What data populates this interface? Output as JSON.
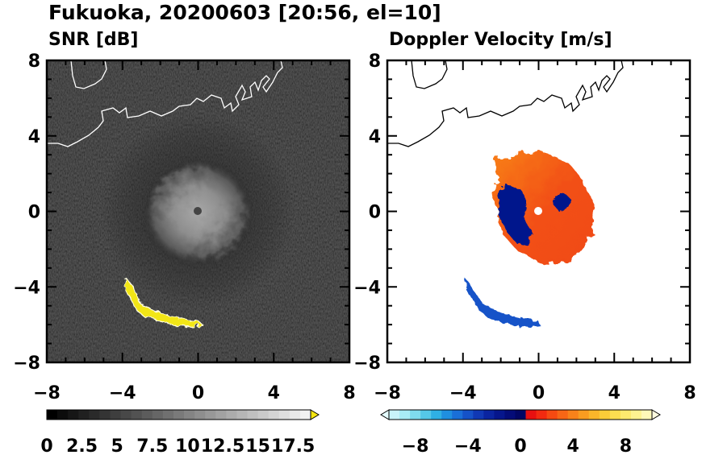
{
  "figure": {
    "title": "Fukuoka, 20200603 [20:56, el=10]"
  },
  "chart_data": [
    {
      "type": "heatmap",
      "title": "SNR [dB]",
      "xlim": [
        -8,
        8
      ],
      "ylim": [
        -8,
        8
      ],
      "xticks": [
        "-8",
        "-4",
        "0",
        "4",
        "8"
      ],
      "yticks": [
        "-8",
        "-4",
        "0",
        "4",
        "8"
      ],
      "background": "#101010",
      "coastline": true,
      "features": [
        {
          "name": "central echo",
          "center": [
            0,
            0
          ],
          "radius_km": 3.0,
          "snr_db": 7
        },
        {
          "name": "southwest band",
          "path": [
            [
              -3.9,
              -3.6
            ],
            [
              -3.7,
              -4.0
            ],
            [
              -3.3,
              -4.5
            ],
            [
              -3.2,
              -5.1
            ],
            [
              -2.5,
              -5.4
            ],
            [
              -1.8,
              -5.6
            ],
            [
              -1.1,
              -5.8
            ],
            [
              -0.4,
              -5.9
            ],
            [
              0.2,
              -6.0
            ]
          ],
          "snr_db": 18
        }
      ],
      "colorbar": {
        "min": 0,
        "max": 18.75,
        "extend": "max",
        "ticks": [
          "0",
          "2.5",
          "5",
          "7.5",
          "10",
          "12.5",
          "15",
          "17.5"
        ],
        "colors": [
          "#000000",
          "#0c0c0c",
          "#161616",
          "#202020",
          "#2a2a2a",
          "#343434",
          "#3e3e3e",
          "#484848",
          "#525252",
          "#5c5c5c",
          "#666666",
          "#707070",
          "#7a7a7a",
          "#848484",
          "#8e8e8e",
          "#989898",
          "#a2a2a2",
          "#acacac",
          "#b6b6b6",
          "#c0c0c0",
          "#cacaca",
          "#d4d4d4",
          "#dedede",
          "#e8e8e8",
          "#f2f2f2"
        ],
        "extend_color": "#f5e611"
      }
    },
    {
      "type": "heatmap",
      "title": "Doppler Velocity [m/s]",
      "xlim": [
        -8,
        8
      ],
      "ylim": [
        -8,
        8
      ],
      "xticks": [
        "-8",
        "-4",
        "0",
        "4",
        "8"
      ],
      "yticks": [
        "-8",
        "-4",
        "0",
        "4",
        "8"
      ],
      "background": "#ffffff",
      "coastline": true,
      "features": [
        {
          "name": "central echo",
          "center": [
            0,
            0
          ],
          "radius_km": 3.0,
          "velocity_ms": 2
        },
        {
          "name": "approaching lobe west",
          "center": [
            -1.3,
            0.2
          ],
          "velocity_ms": -8
        },
        {
          "name": "approaching lobe east",
          "center": [
            1.1,
            0.3
          ],
          "velocity_ms": -8
        },
        {
          "name": "southwest band",
          "path": [
            [
              -3.9,
              -3.6
            ],
            [
              -3.7,
              -4.0
            ],
            [
              -3.3,
              -4.5
            ],
            [
              -3.2,
              -5.1
            ],
            [
              -2.5,
              -5.4
            ],
            [
              -1.8,
              -5.6
            ],
            [
              -1.1,
              -5.8
            ],
            [
              -0.4,
              -5.9
            ],
            [
              0.2,
              -6.0
            ]
          ],
          "velocity_ms": -5
        }
      ],
      "colorbar": {
        "min": -10,
        "max": 10,
        "extend": "both",
        "ticks": [
          "−8",
          "−4",
          "0",
          "4",
          "8"
        ],
        "colors": [
          "#c8f4fa",
          "#a8ecf5",
          "#7fdcee",
          "#55c8e8",
          "#2fb0e4",
          "#1f8fe0",
          "#1a6fd8",
          "#1552c8",
          "#1038b4",
          "#0a24a0",
          "#06168c",
          "#040c78",
          "#020664",
          "#e81010",
          "#f22a10",
          "#f54a12",
          "#f76616",
          "#f8821a",
          "#f99c20",
          "#fab62a",
          "#fbcc38",
          "#fcde50",
          "#fdea6e",
          "#fef290",
          "#fff8b8"
        ],
        "extend_low_color": "#e4fbfd",
        "extend_high_color": "#fffbe0"
      }
    }
  ]
}
